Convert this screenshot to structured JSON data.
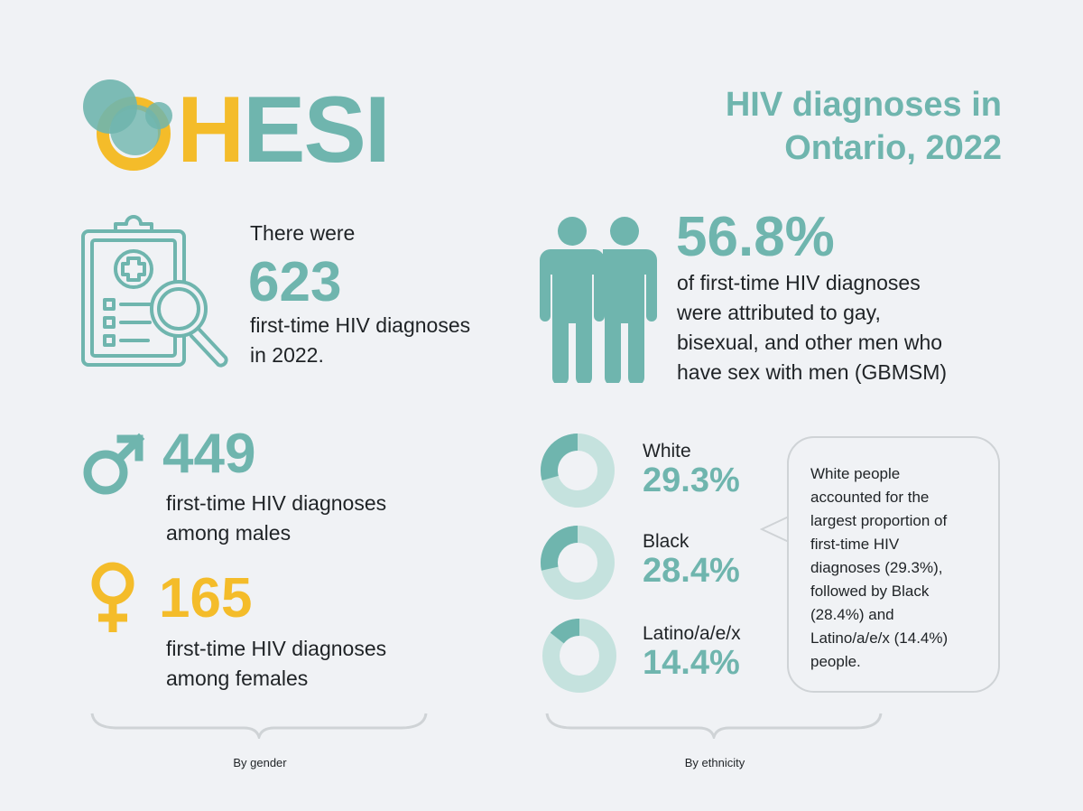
{
  "logo": {
    "text_h": "H",
    "text_esi": "ESI"
  },
  "title": {
    "line1": "HIV diagnoses in",
    "line2": "Ontario, 2022"
  },
  "total": {
    "pre": "There were",
    "value": "623",
    "desc1": "first-time HIV diagnoses",
    "desc2": "in 2022."
  },
  "gbmsm": {
    "value": "56.8%",
    "lines": [
      "of first-time HIV diagnoses",
      "were attributed to gay,",
      "bisexual, and other men who",
      "have sex with men (GBMSM)"
    ]
  },
  "gender": {
    "male": {
      "value": "449",
      "desc1": "first-time HIV diagnoses",
      "desc2": "among males"
    },
    "female": {
      "value": "165",
      "desc1": "first-time HIV diagnoses",
      "desc2": "among females"
    },
    "caption": "By gender"
  },
  "ethnicity": {
    "items": [
      {
        "label": "White",
        "percent": "29.3%",
        "fraction": 0.293
      },
      {
        "label": "Black",
        "percent": "28.4%",
        "fraction": 0.284
      },
      {
        "label": "Latino/a/e/x",
        "percent": "14.4%",
        "fraction": 0.144
      }
    ],
    "caption": "By ethnicity",
    "callout": [
      "White people",
      "accounted for the",
      "largest proportion of",
      "first-time HIV",
      "diagnoses (29.3%),",
      "followed by Black",
      "(28.4%) and",
      "Latino/a/e/x (14.4%)",
      "people."
    ]
  },
  "colors": {
    "teal": "#6fb5ae",
    "teal_light": "#c5e2de",
    "yellow": "#f4bc2a",
    "background": "#f0f2f5"
  },
  "icons": [
    "clipboard-magnifier-icon",
    "two-men-icon",
    "male-symbol-icon",
    "female-symbol-icon"
  ]
}
